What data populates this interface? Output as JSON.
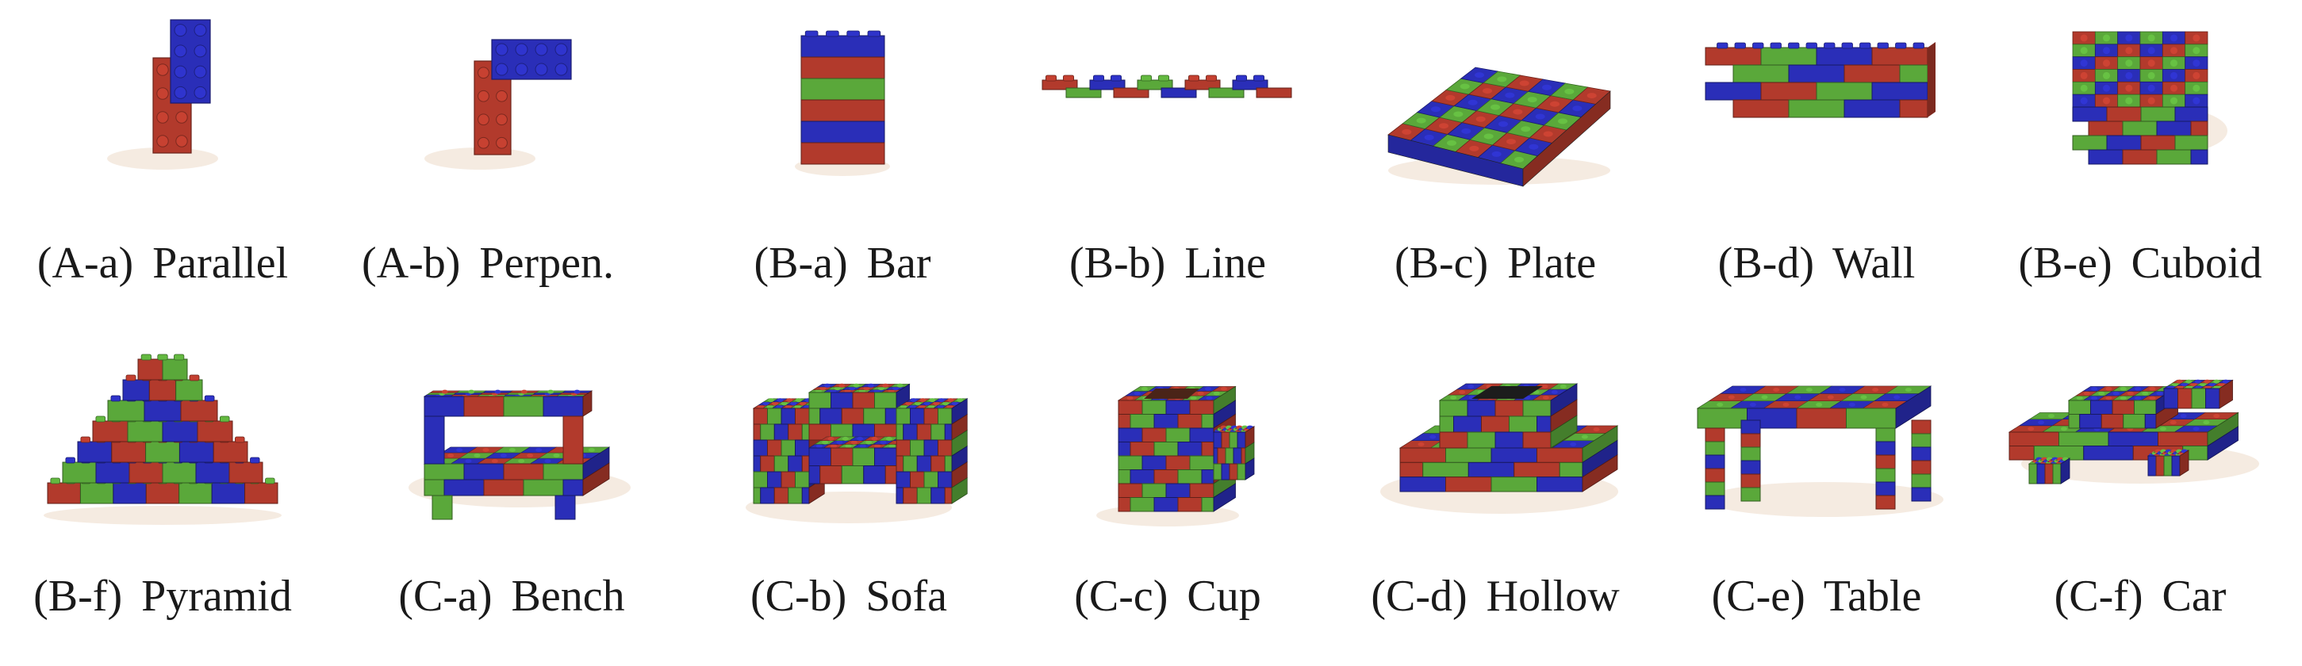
{
  "colors": {
    "red": "#b23a2c",
    "green": "#5aa83a",
    "blue": "#2a2eb8",
    "shadow": "#f1e2d4",
    "caption": "#1a1a1a"
  },
  "panels": [
    {
      "id": "A-a",
      "caption": "(A-a) Parallel",
      "shape": "parallel"
    },
    {
      "id": "A-b",
      "caption": "(A-b) Perpen.",
      "shape": "perpendicular"
    },
    {
      "id": "B-a",
      "caption": "(B-a) Bar",
      "shape": "bar"
    },
    {
      "id": "B-b",
      "caption": "(B-b) Line",
      "shape": "line"
    },
    {
      "id": "B-c",
      "caption": "(B-c) Plate",
      "shape": "plate"
    },
    {
      "id": "B-d",
      "caption": "(B-d) Wall",
      "shape": "wall"
    },
    {
      "id": "B-e",
      "caption": "(B-e) Cuboid",
      "shape": "cuboid"
    },
    {
      "id": "B-f",
      "caption": "(B-f) Pyramid",
      "shape": "pyramid"
    },
    {
      "id": "C-a",
      "caption": "(C-a) Bench",
      "shape": "bench"
    },
    {
      "id": "C-b",
      "caption": "(C-b) Sofa",
      "shape": "sofa"
    },
    {
      "id": "C-c",
      "caption": "(C-c) Cup",
      "shape": "cup"
    },
    {
      "id": "C-d",
      "caption": "(C-d) Hollow",
      "shape": "hollow"
    },
    {
      "id": "C-e",
      "caption": "(C-e) Table",
      "shape": "table"
    },
    {
      "id": "C-f",
      "caption": "(C-f) Car",
      "shape": "car"
    }
  ]
}
